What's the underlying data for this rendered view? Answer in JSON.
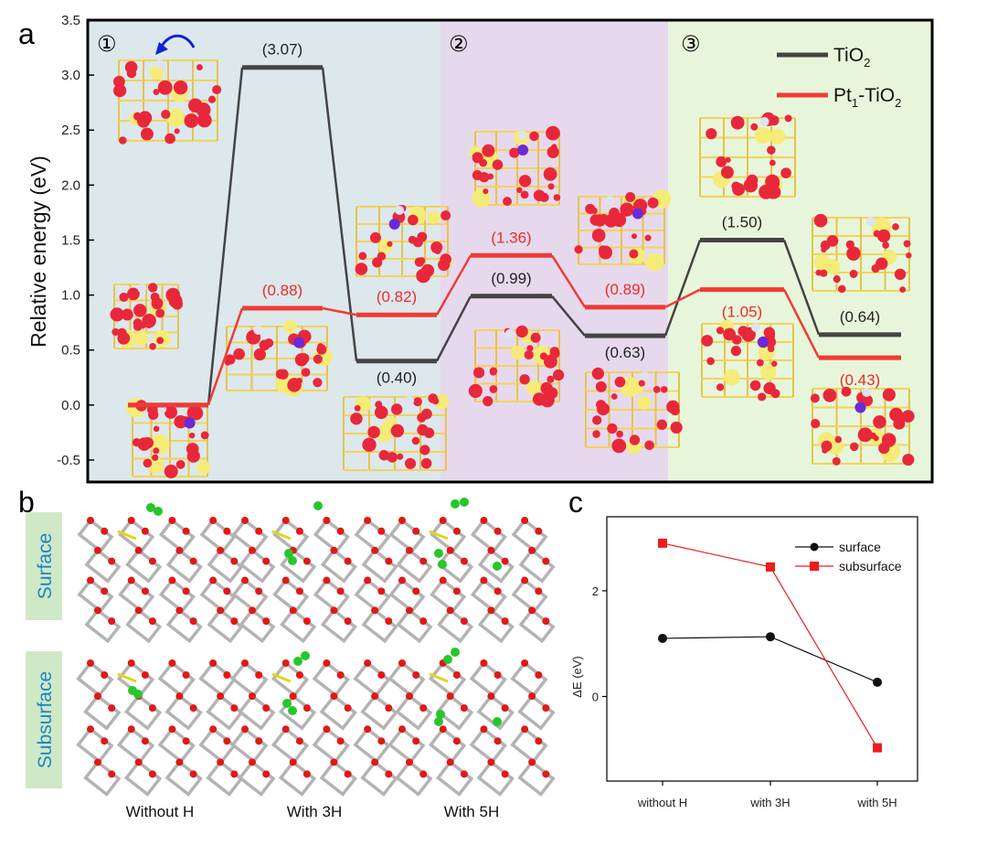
{
  "panels": {
    "a": "a",
    "b": "b",
    "c": "c"
  },
  "chart_data": [
    {
      "type": "line",
      "panel": "a",
      "ylabel": "Relative energy (eV)",
      "ylim": [
        -0.7,
        3.5
      ],
      "yticks": [
        "-0.5",
        "0.0",
        "0.5",
        "1.0",
        "1.5",
        "2.0",
        "2.5",
        "3.0",
        "3.5"
      ],
      "regions": [
        {
          "label": "①",
          "color": "#dce8ec"
        },
        {
          "label": "②",
          "color": "#e6d9ee"
        },
        {
          "label": "③",
          "color": "#e7f6da"
        }
      ],
      "legend_position": "top-right",
      "series": [
        {
          "name": "TiO2",
          "name_main": "TiO",
          "name_sub": "2",
          "color": "#444444",
          "values": [
            0.0,
            3.07,
            0.4,
            0.99,
            0.63,
            1.5,
            0.64
          ],
          "labels": [
            "",
            "(3.07)",
            "(0.40)",
            "(0.99)",
            "(0.63)",
            "(1.50)",
            "(0.64)"
          ]
        },
        {
          "name": "Pt1-TiO2",
          "name_parts": [
            "Pt",
            "1",
            "-TiO",
            "2"
          ],
          "color": "#ef3b36",
          "values": [
            0.0,
            0.88,
            0.82,
            1.36,
            0.89,
            1.05,
            0.43
          ],
          "labels": [
            "",
            "(0.88)",
            "(0.82)",
            "(1.36)",
            "(0.89)",
            "(1.05)",
            "(0.43)"
          ]
        }
      ]
    },
    {
      "type": "line",
      "panel": "c",
      "categories": [
        "without  H",
        "with  3H",
        "with  5H"
      ],
      "ylabel": "ΔE (eV)",
      "yticks": [
        "0",
        "2"
      ],
      "ylim": [
        -1.6,
        3.4
      ],
      "legend_position": "top-right",
      "series": [
        {
          "name": "surface",
          "color": "#111111",
          "marker": "circle",
          "values": [
            1.1,
            1.13,
            0.27
          ]
        },
        {
          "name": "subsurface",
          "color": "#ee1c1c",
          "marker": "square",
          "values": [
            2.9,
            2.45,
            -0.97
          ]
        }
      ]
    }
  ],
  "panel_b": {
    "rows": [
      "Surface",
      "Subsurface"
    ],
    "columns": [
      "Without H",
      "With 3H",
      "With 5H"
    ]
  }
}
